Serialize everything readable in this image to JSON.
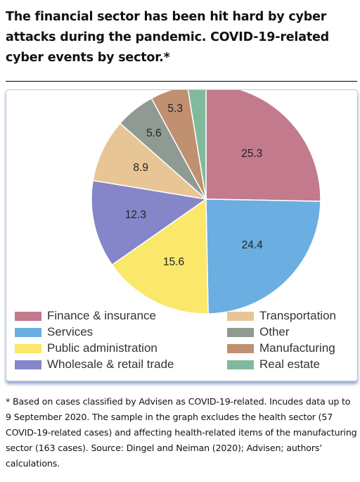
{
  "title": "The financial sector has been hit hard by cyber attacks during the pandemic. COVID-19-related cyber events by sector.*",
  "chart_data": {
    "type": "pie",
    "slices": [
      {
        "label": "Finance & insurance",
        "value": 25.3,
        "value_label": "25.3",
        "color": "#c27a8c"
      },
      {
        "label": "Services",
        "value": 24.4,
        "value_label": "24.4",
        "color": "#6aaee2"
      },
      {
        "label": "Public administration",
        "value": 15.6,
        "value_label": "15.6",
        "color": "#fbe76a"
      },
      {
        "label": "Wholesale & retail trade",
        "value": 12.3,
        "value_label": "12.3",
        "color": "#8585c9"
      },
      {
        "label": "Transportation",
        "value": 8.9,
        "value_label": "8.9",
        "color": "#e8c595"
      },
      {
        "label": "Other",
        "value": 5.6,
        "value_label": "5.6",
        "color": "#8e9a92"
      },
      {
        "label": "Manufacturing",
        "value": 5.3,
        "value_label": "5.3",
        "color": "#c09070"
      },
      {
        "label": "Real estate",
        "value": 2.6,
        "value_label": "",
        "color": "#7fba9c"
      }
    ],
    "legend_placement": "bottom",
    "legend_columns": [
      [
        "Finance & insurance",
        "Services",
        "Public administration",
        "Wholesale & retail trade"
      ],
      [
        "Transportation",
        "Other",
        "Manufacturing",
        "Real estate"
      ]
    ]
  },
  "footnote": "* Based on cases classified by Advisen as COVID-19-related. Incudes data up to 9 September 2020. The sample in the graph excludes the health sector (57 COVID-19-related cases) and affecting health-related items of the manufacturing sector (163 cases). Source: Dingel and Neiman (2020); Advisen; authors’ calculations."
}
